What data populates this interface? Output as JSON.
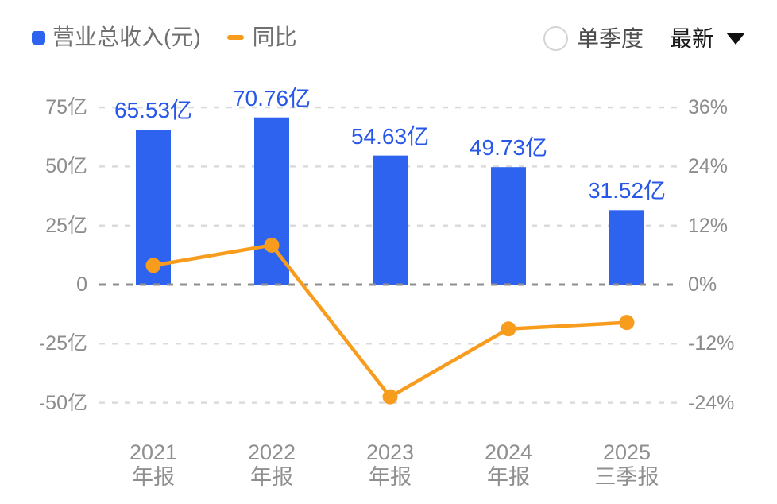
{
  "legend": {
    "revenue_label": "营业总收入(元)",
    "yoy_label": "同比"
  },
  "controls": {
    "radio_label": "单季度",
    "dropdown_value": "最新",
    "dropdown_icon": "caret-down-icon",
    "radio_selected": false
  },
  "colors": {
    "bar": "#2E63F0",
    "line": "#F89C1E",
    "value_label": "#2857E8",
    "axis_text": "#8C8C8C",
    "grid_light": "#DBDBDB",
    "grid_zero": "#8F8F8F"
  },
  "chart_data": {
    "type": "bar",
    "subtype": "bar-with-line-overlay",
    "categories": [
      {
        "line1": "2021",
        "line2": "年报"
      },
      {
        "line1": "2022",
        "line2": "年报"
      },
      {
        "line1": "2023",
        "line2": "年报"
      },
      {
        "line1": "2024",
        "line2": "年报"
      },
      {
        "line1": "2025",
        "line2": "三季报"
      }
    ],
    "series": [
      {
        "name": "营业总收入(元)",
        "type": "bar",
        "axis": "left",
        "unit": "亿",
        "values": [
          65.53,
          70.76,
          54.63,
          49.73,
          31.52
        ],
        "labels": [
          "65.53亿",
          "70.76亿",
          "54.63亿",
          "49.73亿",
          "31.52亿"
        ]
      },
      {
        "name": "同比",
        "type": "line",
        "axis": "right",
        "unit": "%",
        "values": [
          3.9,
          8.0,
          -22.8,
          -9.0,
          -7.7
        ]
      }
    ],
    "left_axis": {
      "ticks": [
        "75亿",
        "50亿",
        "25亿",
        "0",
        "-25亿",
        "-50亿"
      ],
      "values": [
        75,
        50,
        25,
        0,
        -25,
        -50
      ],
      "range": [
        -50,
        75
      ]
    },
    "right_axis": {
      "ticks": [
        "36%",
        "24%",
        "12%",
        "0%",
        "-12%",
        "-24%"
      ],
      "values": [
        36,
        24,
        12,
        0,
        -12,
        -24
      ],
      "range": [
        -24,
        36
      ]
    },
    "grid": "dashed-horizontal",
    "legend_position": "top-left"
  }
}
